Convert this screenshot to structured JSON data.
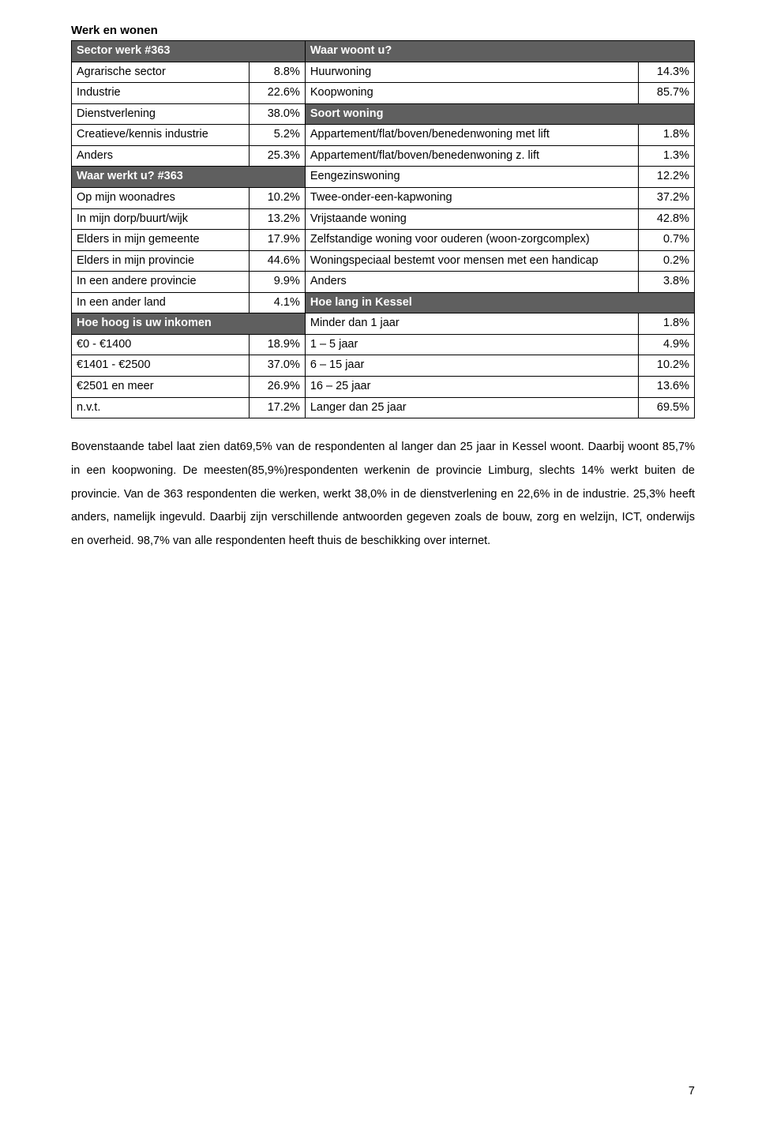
{
  "title": "Werk en wonen",
  "headers": {
    "sector": "Sector werk #363",
    "waar_woont": "Waar woont u?",
    "waar_werkt": "Waar werkt u? #363",
    "soort_woning": "Soort woning",
    "hoe_hoog": "Hoe hoog is uw inkomen",
    "hoe_lang": "Hoe lang in Kessel"
  },
  "left": {
    "r1l": "Agrarische sector",
    "r1v": "8.8%",
    "r2l": "Industrie",
    "r2v": "22.6%",
    "r3l": "Dienstverlening",
    "r3v": "38.0%",
    "r4l": "Creatieve/kennis industrie",
    "r4v": "5.2%",
    "r5l": "Anders",
    "r5v": "25.3%",
    "r7l": "Op mijn woonadres",
    "r7v": "10.2%",
    "r8l": "In mijn dorp/buurt/wijk",
    "r8v": "13.2%",
    "r9l": "Elders in mijn gemeente",
    "r9v": "17.9%",
    "r10l": "Elders in mijn provincie",
    "r10v": "44.6%",
    "r11l": "In een andere provincie",
    "r11v": "9.9%",
    "r12l": "In een ander land",
    "r12v": "4.1%",
    "r14l": "€0 - €1400",
    "r14v": "18.9%",
    "r15l": "€1401 - €2500",
    "r15v": "37.0%",
    "r16l": "€2501 en meer",
    "r16v": "26.9%",
    "r17l": "n.v.t.",
    "r17v": "17.2%"
  },
  "right": {
    "r1l": "Huurwoning",
    "r1v": "14.3%",
    "r2l": "Koopwoning",
    "r2v": "85.7%",
    "r4l": "Appartement/flat/boven/benedenwoning met lift",
    "r4v": "1.8%",
    "r5l": "Appartement/flat/boven/benedenwoning z. lift",
    "r5v": "1.3%",
    "r6l": "Eengezinswoning",
    "r6v": "12.2%",
    "r7l": "Twee-onder-een-kapwoning",
    "r7v": "37.2%",
    "r8l": "Vrijstaande woning",
    "r8v": "42.8%",
    "r9l": "Zelfstandige woning voor ouderen (woon-zorgcomplex)",
    "r9v": "0.7%",
    "r10l": "Woningspeciaal bestemt voor mensen met een handicap",
    "r10v": "0.2%",
    "r11l": "Anders",
    "r11v": "3.8%",
    "r13l": "Minder dan 1 jaar",
    "r13v": "1.8%",
    "r14l": "1 – 5 jaar",
    "r14v": "4.9%",
    "r15l": "6 – 15 jaar",
    "r15v": "10.2%",
    "r16l": "16 – 25 jaar",
    "r16v": "13.6%",
    "r17l": "Langer dan 25 jaar",
    "r17v": "69.5%"
  },
  "paragraph": "Bovenstaande tabel laat zien dat69,5% van de respondenten al langer dan 25 jaar in Kessel woont. Daarbij woont 85,7% in een koopwoning. De meesten(85,9%)respondenten werkenin de provincie Limburg, slechts 14% werkt buiten de provincie. Van de 363 respondenten die werken, werkt 38,0% in de dienstverlening en 22,6% in de industrie. 25,3% heeft anders, namelijk ingevuld. Daarbij zijn verschillende antwoorden gegeven zoals de bouw, zorg en welzijn, ICT, onderwijs en overheid. 98,7% van alle respondenten heeft thuis de beschikking over internet.",
  "page_number": "7"
}
